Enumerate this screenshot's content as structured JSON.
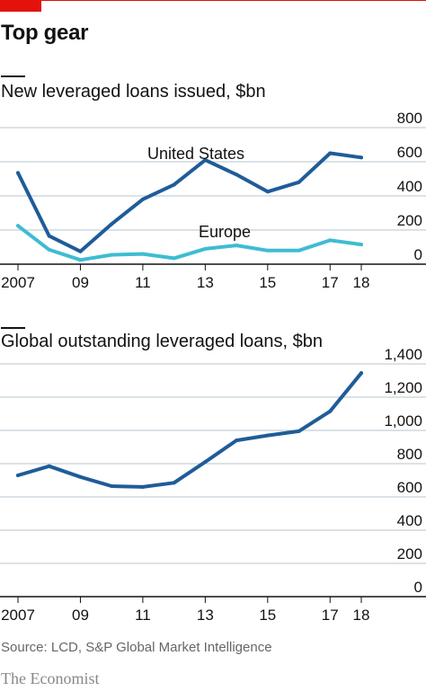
{
  "title": "Top gear",
  "source": "Source: LCD, S&P Global Market Intelligence",
  "brand": "The Economist",
  "colors": {
    "accent_red": "#e3120b",
    "us_line": "#1f5c99",
    "europe_line": "#3ebcd2",
    "global_line": "#1f5c99",
    "grid": "#b7c6cf",
    "axis": "#121212"
  },
  "chart_data": [
    {
      "type": "line",
      "title": "New leveraged loans issued, $bn",
      "x": [
        2007,
        2008,
        2009,
        2010,
        2011,
        2012,
        2013,
        2014,
        2015,
        2016,
        2017,
        2018
      ],
      "x_tick_values": [
        2007,
        2009,
        2011,
        2013,
        2015,
        2017,
        2018
      ],
      "x_tick_labels": [
        "2007",
        "09",
        "11",
        "13",
        "15",
        "17",
        "18"
      ],
      "ylim": [
        0,
        800
      ],
      "y_ticks": [
        0,
        200,
        400,
        600,
        800
      ],
      "grid": true,
      "series": [
        {
          "name": "United States",
          "values": [
            535,
            165,
            75,
            235,
            380,
            465,
            610,
            525,
            425,
            480,
            650,
            625
          ]
        },
        {
          "name": "Europe",
          "values": [
            225,
            85,
            25,
            55,
            60,
            35,
            90,
            110,
            80,
            80,
            140,
            115
          ]
        }
      ]
    },
    {
      "type": "line",
      "title": "Global outstanding leveraged loans, $bn",
      "x": [
        2007,
        2008,
        2009,
        2010,
        2011,
        2012,
        2013,
        2014,
        2015,
        2016,
        2017,
        2018
      ],
      "x_tick_values": [
        2007,
        2009,
        2011,
        2013,
        2015,
        2017,
        2018
      ],
      "x_tick_labels": [
        "2007",
        "09",
        "11",
        "13",
        "15",
        "17",
        "18"
      ],
      "ylim": [
        0,
        1400
      ],
      "y_ticks": [
        0,
        200,
        400,
        600,
        800,
        1000,
        1200,
        1400
      ],
      "y_tick_labels": [
        "0",
        "200",
        "400",
        "600",
        "800",
        "1,000",
        "1,200",
        "1,400"
      ],
      "grid": true,
      "series": [
        {
          "values": [
            730,
            785,
            720,
            665,
            660,
            685,
            810,
            940,
            970,
            995,
            1115,
            1345
          ]
        }
      ]
    }
  ]
}
